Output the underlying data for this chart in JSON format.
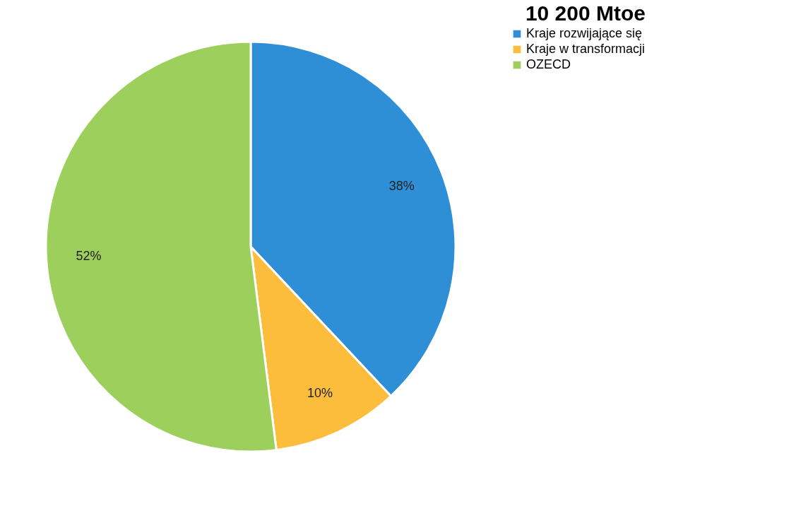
{
  "chart_data": {
    "type": "pie",
    "title": "10 200 Mtoe",
    "categories": [
      "Kraje rozwijające się",
      "Kraje w transformacji",
      "OZECD"
    ],
    "values": [
      38,
      10,
      52
    ],
    "colors": [
      "#2e8ed6",
      "#fbbd3b",
      "#9dcf5d"
    ],
    "value_labels": [
      "38%",
      "10%",
      "52%"
    ],
    "legend": "right"
  }
}
